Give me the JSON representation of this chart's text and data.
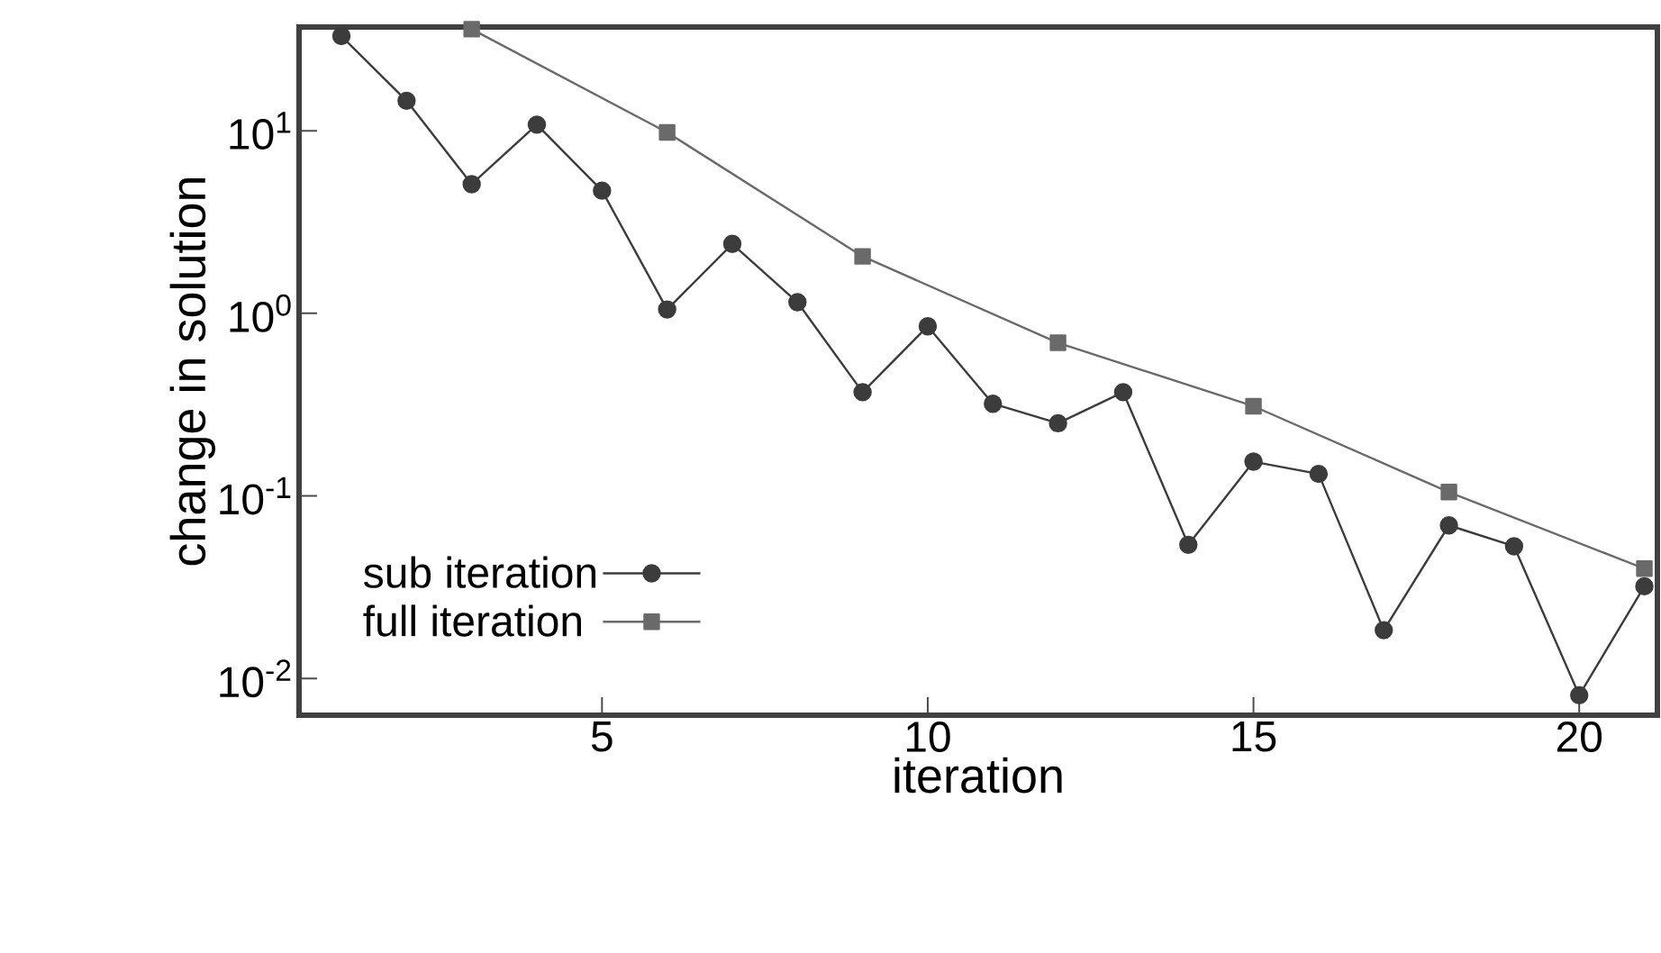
{
  "chart_data": {
    "type": "line",
    "xlabel": "iteration",
    "ylabel": "change in solution",
    "log": "y",
    "xlim": [
      0.35,
      21.2
    ],
    "xticks": [
      5,
      10,
      15,
      20
    ],
    "ylim": [
      0.0063,
      37
    ],
    "yticks": [
      {
        "value": 10,
        "label": "10$^{1}$"
      },
      {
        "value": 1,
        "label": "10$^{0}$"
      },
      {
        "value": 0.1,
        "label": "10$^{-1}$"
      },
      {
        "value": 0.01,
        "label": "10$^{-2}$"
      }
    ],
    "legend": "bottom left",
    "grid": false,
    "series": [
      {
        "name": "sub iteration",
        "color": "#3c3c3c",
        "marker": "circle",
        "x": [
          1,
          2,
          3,
          4,
          5,
          6,
          7,
          8,
          9,
          10,
          11,
          12,
          13,
          14,
          15,
          16,
          17,
          18,
          19,
          20,
          21
        ],
        "values": [
          33,
          14.6,
          5.1,
          10.8,
          4.7,
          1.05,
          2.4,
          1.15,
          0.37,
          0.85,
          0.32,
          0.25,
          0.37,
          0.054,
          0.154,
          0.132,
          0.0184,
          0.069,
          0.053,
          0.0081,
          0.032
        ]
      },
      {
        "name": "full iteration",
        "color": "#6a6a6a",
        "marker": "square",
        "x": [
          3,
          6,
          9,
          12,
          15,
          18,
          21
        ],
        "values": [
          36,
          9.8,
          2.05,
          0.69,
          0.31,
          0.105,
          0.04
        ]
      }
    ]
  }
}
